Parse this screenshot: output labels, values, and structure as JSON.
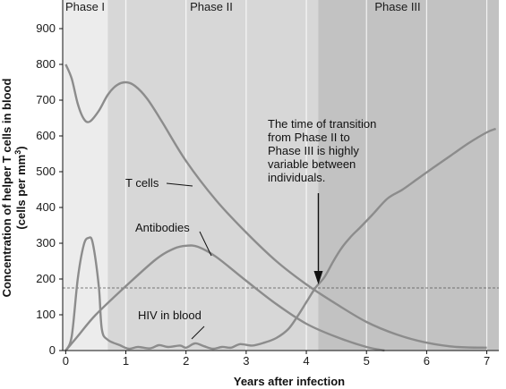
{
  "chart_data": {
    "type": "line",
    "phases": [
      {
        "label": "Phase I",
        "x_start": 0,
        "x_end": 0.7,
        "color": "#ececec"
      },
      {
        "label": "Phase II",
        "x_start": 0.7,
        "x_end": 4.2,
        "color": "#d7d7d7"
      },
      {
        "label": "Phase III",
        "x_start": 4.2,
        "x_end": 7.2,
        "color": "#c2c2c2"
      }
    ],
    "xlabel": "Years after infection",
    "ylabel_line1": "Concentration of helper T cells in blood",
    "ylabel_line2": "(cells per mm",
    "ylabel_sup": "3",
    "ylabel_end": ")",
    "xlim": [
      -0.05,
      7.2
    ],
    "ylim": [
      0,
      980
    ],
    "x_ticks": [
      0,
      1,
      2,
      3,
      4,
      5,
      6,
      7
    ],
    "y_ticks": [
      0,
      100,
      200,
      300,
      400,
      500,
      600,
      700,
      800,
      900
    ],
    "threshold": 175,
    "series": [
      {
        "name": "T cells",
        "points": [
          [
            0,
            800
          ],
          [
            0.1,
            760
          ],
          [
            0.2,
            690
          ],
          [
            0.3,
            648
          ],
          [
            0.4,
            640
          ],
          [
            0.55,
            670
          ],
          [
            0.7,
            715
          ],
          [
            0.85,
            742
          ],
          [
            1.0,
            750
          ],
          [
            1.15,
            740
          ],
          [
            1.35,
            705
          ],
          [
            1.6,
            640
          ],
          [
            2.0,
            530
          ],
          [
            2.5,
            420
          ],
          [
            3.0,
            330
          ],
          [
            3.5,
            250
          ],
          [
            4.0,
            185
          ],
          [
            4.5,
            130
          ],
          [
            5.0,
            80
          ],
          [
            5.5,
            45
          ],
          [
            6.0,
            22
          ],
          [
            6.5,
            10
          ],
          [
            7.0,
            8
          ]
        ]
      },
      {
        "name": "Antibodies",
        "points": [
          [
            0,
            0
          ],
          [
            0.2,
            40
          ],
          [
            0.5,
            100
          ],
          [
            1.0,
            180
          ],
          [
            1.5,
            255
          ],
          [
            1.8,
            285
          ],
          [
            2.0,
            293
          ],
          [
            2.2,
            290
          ],
          [
            2.5,
            262
          ],
          [
            3.0,
            195
          ],
          [
            3.5,
            130
          ],
          [
            4.0,
            75
          ],
          [
            4.5,
            38
          ],
          [
            5.0,
            10
          ],
          [
            5.3,
            0
          ]
        ]
      },
      {
        "name": "HIV in blood",
        "points": [
          [
            0,
            0
          ],
          [
            0.1,
            40
          ],
          [
            0.2,
            200
          ],
          [
            0.3,
            295
          ],
          [
            0.38,
            315
          ],
          [
            0.45,
            300
          ],
          [
            0.55,
            180
          ],
          [
            0.6,
            60
          ],
          [
            0.7,
            30
          ],
          [
            0.9,
            15
          ],
          [
            1.05,
            5
          ],
          [
            1.2,
            10
          ],
          [
            1.4,
            6
          ],
          [
            1.55,
            15
          ],
          [
            1.7,
            10
          ],
          [
            1.9,
            14
          ],
          [
            2.0,
            8
          ],
          [
            2.15,
            20
          ],
          [
            2.3,
            12
          ],
          [
            2.45,
            5
          ],
          [
            2.6,
            10
          ],
          [
            2.75,
            8
          ],
          [
            2.9,
            18
          ],
          [
            3.1,
            14
          ],
          [
            3.3,
            22
          ],
          [
            3.5,
            35
          ],
          [
            3.7,
            60
          ],
          [
            3.85,
            95
          ],
          [
            4.0,
            135
          ],
          [
            4.15,
            175
          ],
          [
            4.3,
            205
          ],
          [
            4.45,
            250
          ],
          [
            4.6,
            290
          ],
          [
            4.75,
            320
          ],
          [
            4.9,
            345
          ],
          [
            5.1,
            380
          ],
          [
            5.35,
            425
          ],
          [
            5.6,
            450
          ],
          [
            5.85,
            480
          ],
          [
            6.1,
            510
          ],
          [
            6.4,
            545
          ],
          [
            6.7,
            580
          ],
          [
            7.0,
            610
          ],
          [
            7.15,
            620
          ]
        ]
      }
    ],
    "labels": {
      "t_cells": "T cells",
      "antibodies": "Antibodies",
      "hiv": "HIV in blood"
    },
    "annotation": {
      "lines": [
        "The time of transition",
        "from Phase II to",
        "Phase III is highly",
        "variable between",
        "individuals."
      ],
      "arrow_x": 4.2
    },
    "colors": {
      "curve": "#8c8c8c",
      "axis": "#111111",
      "grid": "#ffffff",
      "threshold": "#555555"
    }
  }
}
